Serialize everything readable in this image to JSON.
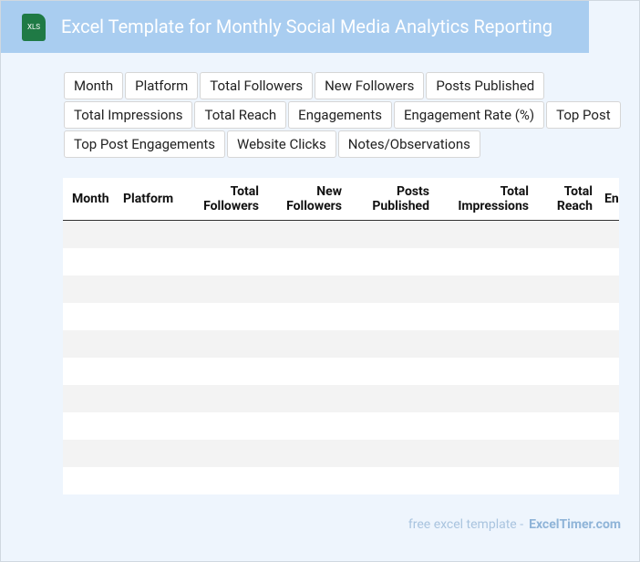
{
  "header": {
    "icon": "XLS",
    "title": "Excel Template for Monthly Social Media Analytics Reporting"
  },
  "tags": [
    "Month",
    "Platform",
    "Total Followers",
    "New Followers",
    "Posts Published",
    "Total Impressions",
    "Total Reach",
    "Engagements",
    "Engagement Rate (%)",
    "Top Post",
    "Top Post Engagements",
    "Website Clicks",
    "Notes/Observations"
  ],
  "table": {
    "columns": [
      "Month",
      "Platform",
      "Total Followers",
      "New Followers",
      "Posts Published",
      "Total Impressions",
      "Total Reach",
      "Engagements"
    ]
  },
  "footer": {
    "text": "free excel template -",
    "link": "ExcelTimer.com"
  }
}
